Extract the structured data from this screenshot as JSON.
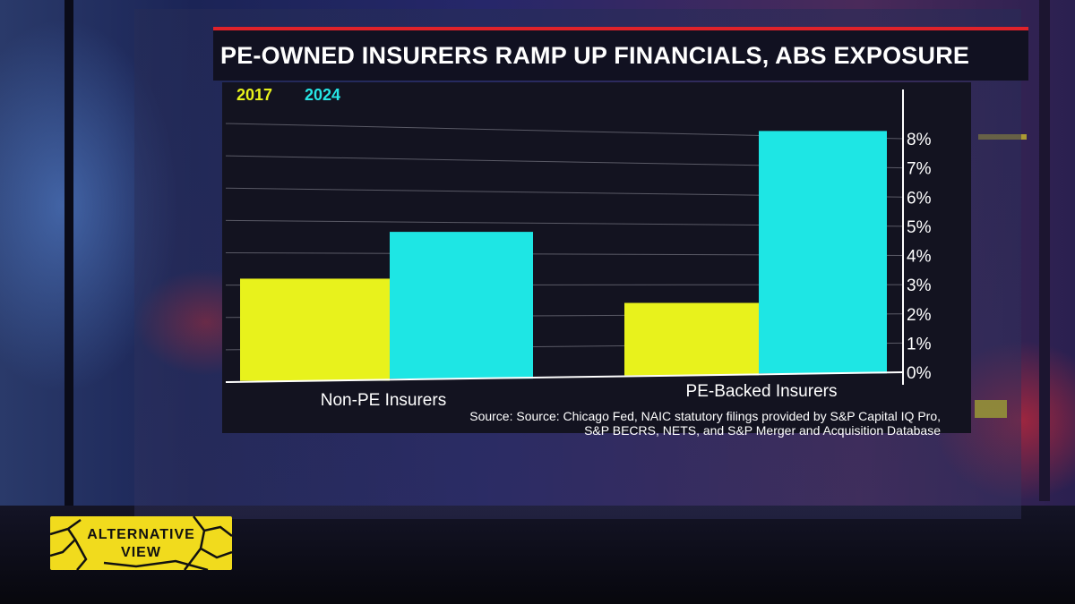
{
  "headline": "PE-OWNED INSURERS RAMP UP FINANCIALS, ABS EXPOSURE",
  "source": {
    "line1": "Source: Source: Chicago Fed, NAIC statutory filings provided by S&P Capital IQ Pro,",
    "line2": "S&P BECRS, NETS, and S&P Merger and Acquisition Database"
  },
  "badge": {
    "line1": "ALTERNATIVE",
    "line2": "VIEW"
  },
  "colors": {
    "series_2017": "#e8f21c",
    "series_2024": "#1ee6e4",
    "accent": "#e0222a",
    "badge": "#f1db1d"
  },
  "chart_data": {
    "type": "bar",
    "categories": [
      "Non-PE Insurers",
      "PE-Backed Insurers"
    ],
    "series": [
      {
        "name": "2017",
        "values": [
          3.2,
          2.4
        ]
      },
      {
        "name": "2024",
        "values": [
          4.7,
          8.2
        ]
      }
    ],
    "y_ticks": [
      "0%",
      "1%",
      "2%",
      "3%",
      "4%",
      "5%",
      "6%",
      "7%",
      "8%"
    ],
    "ylim": [
      0,
      8
    ],
    "legend": "top-left",
    "grid": true
  }
}
